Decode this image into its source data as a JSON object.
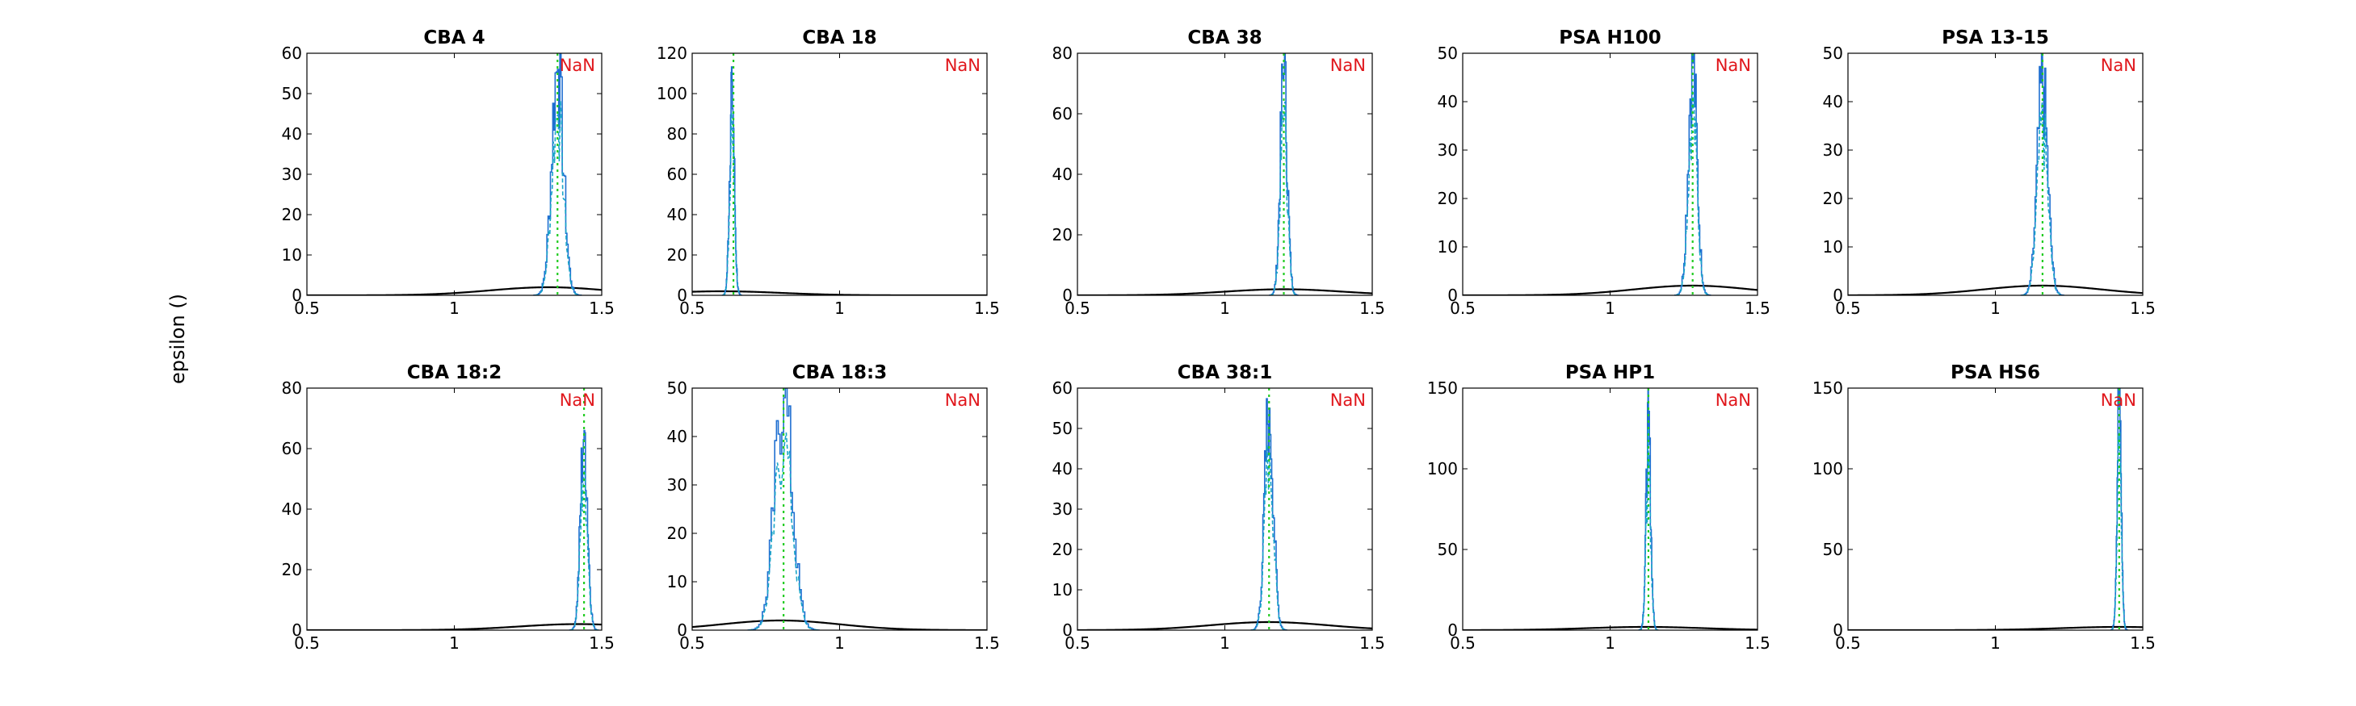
{
  "figure": {
    "ylabel": "epsilon ()"
  },
  "colors": {
    "axes": "#000000",
    "hist_solid": "#1f6fd1",
    "hist_dashed": "#1aa6c8",
    "ref_line": "#22cc22",
    "prior_curve": "#000000",
    "nan_text": "#e0161b"
  },
  "chart_data": [
    {
      "type": "line",
      "title": "CBA 4",
      "annotation": "NaN",
      "xlim": [
        0.5,
        1.5
      ],
      "ylim": [
        0,
        60
      ],
      "x_ticks": [
        "0.5",
        "1",
        "1.5"
      ],
      "y_ticks": [
        "0",
        "10",
        "20",
        "30",
        "40",
        "50",
        "60"
      ],
      "reference_x": 1.35,
      "peak_center": 1.35,
      "peak_height": 56,
      "peak_width": 0.02,
      "prior": {
        "mean": 1.32,
        "sd": 0.2,
        "peak": 2.0
      }
    },
    {
      "type": "line",
      "title": "CBA 18",
      "annotation": "NaN",
      "xlim": [
        0.5,
        1.5
      ],
      "ylim": [
        0,
        120
      ],
      "x_ticks": [
        "0.5",
        "1",
        "1.5"
      ],
      "y_ticks": [
        "0",
        "20",
        "40",
        "60",
        "80",
        "100",
        "120"
      ],
      "reference_x": 0.64,
      "peak_center": 0.635,
      "peak_height": 106,
      "peak_width": 0.008,
      "prior": {
        "mean": 0.6,
        "sd": 0.2,
        "peak": 2.0
      }
    },
    {
      "type": "line",
      "title": "CBA 38",
      "annotation": "NaN",
      "xlim": [
        0.5,
        1.5
      ],
      "ylim": [
        0,
        80
      ],
      "x_ticks": [
        "0.5",
        "1",
        "1.5"
      ],
      "y_ticks": [
        "0",
        "20",
        "40",
        "60",
        "80"
      ],
      "reference_x": 1.2,
      "peak_center": 1.2,
      "peak_height": 73,
      "peak_width": 0.012,
      "prior": {
        "mean": 1.2,
        "sd": 0.2,
        "peak": 2.0
      }
    },
    {
      "type": "line",
      "title": "PSA H100",
      "annotation": "NaN",
      "xlim": [
        0.5,
        1.5
      ],
      "ylim": [
        0,
        50
      ],
      "x_ticks": [
        "0.5",
        "1",
        "1.5"
      ],
      "y_ticks": [
        "0",
        "10",
        "20",
        "30",
        "40",
        "50"
      ],
      "reference_x": 1.28,
      "peak_center": 1.28,
      "peak_height": 48,
      "peak_width": 0.015,
      "prior": {
        "mean": 1.28,
        "sd": 0.2,
        "peak": 2.0
      }
    },
    {
      "type": "line",
      "title": "PSA 13-15",
      "annotation": "NaN",
      "xlim": [
        0.5,
        1.5
      ],
      "ylim": [
        0,
        50
      ],
      "x_ticks": [
        "0.5",
        "1",
        "1.5"
      ],
      "y_ticks": [
        "0",
        "10",
        "20",
        "30",
        "40",
        "50"
      ],
      "reference_x": 1.16,
      "peak_center": 1.16,
      "peak_height": 43,
      "peak_width": 0.018,
      "prior": {
        "mean": 1.16,
        "sd": 0.2,
        "peak": 2.0
      }
    },
    {
      "type": "line",
      "title": "CBA 18:2",
      "annotation": "NaN",
      "xlim": [
        0.5,
        1.5
      ],
      "ylim": [
        0,
        80
      ],
      "x_ticks": [
        "0.5",
        "1",
        "1.5"
      ],
      "y_ticks": [
        "0",
        "20",
        "40",
        "60",
        "80"
      ],
      "reference_x": 1.44,
      "peak_center": 1.44,
      "peak_height": 66,
      "peak_width": 0.012,
      "prior": {
        "mean": 1.42,
        "sd": 0.2,
        "peak": 2.0
      }
    },
    {
      "type": "line",
      "title": "CBA 18:3",
      "annotation": "NaN",
      "xlim": [
        0.5,
        1.5
      ],
      "ylim": [
        0,
        50
      ],
      "x_ticks": [
        "0.5",
        "1",
        "1.5"
      ],
      "y_ticks": [
        "0",
        "10",
        "20",
        "30",
        "40",
        "50"
      ],
      "reference_x": 0.81,
      "peak_center": 0.81,
      "peak_height": 48,
      "peak_width": 0.03,
      "prior": {
        "mean": 0.8,
        "sd": 0.2,
        "peak": 2.0
      }
    },
    {
      "type": "line",
      "title": "CBA 38:1",
      "annotation": "NaN",
      "xlim": [
        0.5,
        1.5
      ],
      "ylim": [
        0,
        60
      ],
      "x_ticks": [
        "0.5",
        "1",
        "1.5"
      ],
      "y_ticks": [
        "0",
        "10",
        "20",
        "30",
        "40",
        "50",
        "60"
      ],
      "reference_x": 1.15,
      "peak_center": 1.15,
      "peak_height": 55,
      "peak_width": 0.015,
      "prior": {
        "mean": 1.15,
        "sd": 0.2,
        "peak": 2.0
      }
    },
    {
      "type": "line",
      "title": "PSA HP1",
      "annotation": "NaN",
      "xlim": [
        0.5,
        1.5
      ],
      "ylim": [
        0,
        150
      ],
      "x_ticks": [
        "0.5",
        "1",
        "1.5"
      ],
      "y_ticks": [
        "0",
        "50",
        "100",
        "150"
      ],
      "reference_x": 1.13,
      "peak_center": 1.13,
      "peak_height": 126,
      "peak_width": 0.008,
      "prior": {
        "mean": 1.12,
        "sd": 0.2,
        "peak": 2.0
      }
    },
    {
      "type": "line",
      "title": "PSA HS6",
      "annotation": "NaN",
      "xlim": [
        0.5,
        1.5
      ],
      "ylim": [
        0,
        150
      ],
      "x_ticks": [
        "0.5",
        "1",
        "1.5"
      ],
      "y_ticks": [
        "0",
        "50",
        "100",
        "150"
      ],
      "reference_x": 1.42,
      "peak_center": 1.42,
      "peak_height": 148,
      "peak_width": 0.007,
      "prior": {
        "mean": 1.42,
        "sd": 0.2,
        "peak": 2.0
      }
    }
  ]
}
